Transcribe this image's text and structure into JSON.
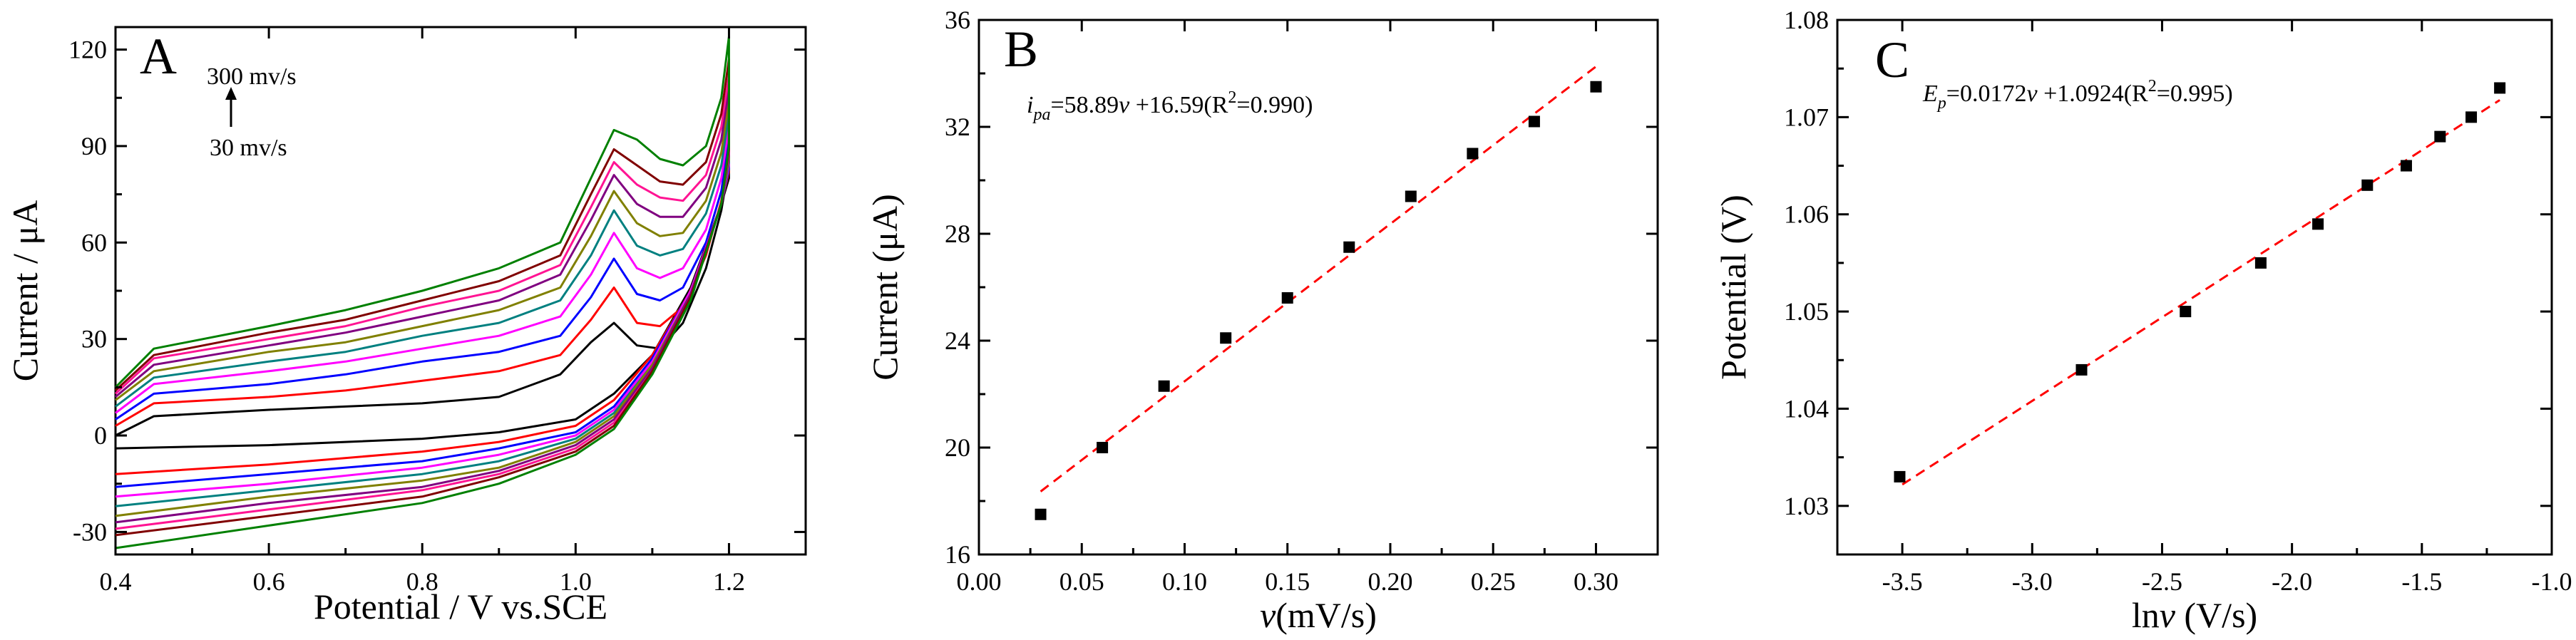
{
  "chart_data": [
    {
      "panel": "A",
      "type": "line",
      "xlabel": "Potential / V vs.SCE",
      "ylabel": "Current / μA",
      "xlim": [
        0.4,
        1.3
      ],
      "ylim": [
        -37,
        127
      ],
      "x_ticks": [
        0.4,
        0.6,
        0.8,
        1.0,
        1.2
      ],
      "x_tick_labels": [
        "0.4",
        "0.6",
        "0.8",
        "1.0",
        "1.2"
      ],
      "y_ticks": [
        -30,
        0,
        30,
        60,
        90,
        120
      ],
      "y_tick_labels": [
        "-30",
        "0",
        "30",
        "60",
        "90",
        "120"
      ],
      "annotation_top": "300 mv/s",
      "annotation_bottom": "30 mv/s",
      "scan_rates_mV_s": [
        30,
        60,
        90,
        120,
        150,
        180,
        210,
        240,
        270,
        300
      ],
      "series_colors": [
        "#000000",
        "#ff0000",
        "#0000ff",
        "#ff00ff",
        "#008080",
        "#808000",
        "#800080",
        "#ff1493",
        "#800000",
        "#008000"
      ],
      "series_points": [
        [
          [
            0.4,
            -4
          ],
          [
            0.6,
            -3
          ],
          [
            0.8,
            -1
          ],
          [
            0.9,
            1
          ],
          [
            1.0,
            5
          ],
          [
            1.05,
            13
          ],
          [
            1.1,
            25
          ],
          [
            1.15,
            46
          ],
          [
            1.19,
            72
          ],
          [
            1.2,
            80
          ],
          [
            1.2,
            84
          ],
          [
            1.19,
            70
          ],
          [
            1.17,
            52
          ],
          [
            1.14,
            35
          ],
          [
            1.11,
            27
          ],
          [
            1.08,
            28
          ],
          [
            1.05,
            35
          ],
          [
            1.02,
            29
          ],
          [
            0.98,
            19
          ],
          [
            0.9,
            12
          ],
          [
            0.8,
            10
          ],
          [
            0.7,
            9
          ],
          [
            0.6,
            8
          ],
          [
            0.45,
            6
          ],
          [
            0.4,
            0
          ]
        ],
        [
          [
            0.4,
            -12
          ],
          [
            0.6,
            -9
          ],
          [
            0.8,
            -5
          ],
          [
            0.9,
            -2
          ],
          [
            1.0,
            3
          ],
          [
            1.05,
            11
          ],
          [
            1.1,
            25
          ],
          [
            1.15,
            45
          ],
          [
            1.19,
            72
          ],
          [
            1.2,
            82
          ],
          [
            1.2,
            88
          ],
          [
            1.19,
            73
          ],
          [
            1.17,
            56
          ],
          [
            1.14,
            40
          ],
          [
            1.11,
            34
          ],
          [
            1.08,
            35
          ],
          [
            1.05,
            46
          ],
          [
            1.02,
            36
          ],
          [
            0.98,
            25
          ],
          [
            0.9,
            20
          ],
          [
            0.8,
            17
          ],
          [
            0.7,
            14
          ],
          [
            0.6,
            12
          ],
          [
            0.45,
            10
          ],
          [
            0.4,
            3
          ]
        ],
        [
          [
            0.4,
            -16
          ],
          [
            0.6,
            -12
          ],
          [
            0.8,
            -8
          ],
          [
            0.9,
            -4
          ],
          [
            1.0,
            1
          ],
          [
            1.05,
            9
          ],
          [
            1.1,
            24
          ],
          [
            1.15,
            45
          ],
          [
            1.19,
            72
          ],
          [
            1.2,
            83
          ],
          [
            1.2,
            92
          ],
          [
            1.19,
            76
          ],
          [
            1.17,
            60
          ],
          [
            1.14,
            46
          ],
          [
            1.11,
            42
          ],
          [
            1.08,
            44
          ],
          [
            1.05,
            55
          ],
          [
            1.02,
            43
          ],
          [
            0.98,
            31
          ],
          [
            0.9,
            26
          ],
          [
            0.8,
            23
          ],
          [
            0.7,
            19
          ],
          [
            0.6,
            16
          ],
          [
            0.45,
            13
          ],
          [
            0.4,
            5
          ]
        ],
        [
          [
            0.4,
            -19
          ],
          [
            0.6,
            -15
          ],
          [
            0.8,
            -10
          ],
          [
            0.9,
            -6
          ],
          [
            1.0,
            0
          ],
          [
            1.05,
            8
          ],
          [
            1.1,
            23
          ],
          [
            1.15,
            45
          ],
          [
            1.19,
            72
          ],
          [
            1.2,
            84
          ],
          [
            1.2,
            96
          ],
          [
            1.19,
            80
          ],
          [
            1.17,
            64
          ],
          [
            1.14,
            52
          ],
          [
            1.11,
            49
          ],
          [
            1.08,
            52
          ],
          [
            1.05,
            63
          ],
          [
            1.02,
            50
          ],
          [
            0.98,
            37
          ],
          [
            0.9,
            31
          ],
          [
            0.8,
            27
          ],
          [
            0.7,
            23
          ],
          [
            0.6,
            20
          ],
          [
            0.45,
            16
          ],
          [
            0.4,
            7
          ]
        ],
        [
          [
            0.4,
            -22
          ],
          [
            0.6,
            -17
          ],
          [
            0.8,
            -12
          ],
          [
            0.9,
            -8
          ],
          [
            1.0,
            -1
          ],
          [
            1.05,
            7
          ],
          [
            1.1,
            22
          ],
          [
            1.15,
            44
          ],
          [
            1.19,
            72
          ],
          [
            1.2,
            85
          ],
          [
            1.2,
            100
          ],
          [
            1.19,
            84
          ],
          [
            1.17,
            69
          ],
          [
            1.14,
            58
          ],
          [
            1.11,
            56
          ],
          [
            1.08,
            59
          ],
          [
            1.05,
            70
          ],
          [
            1.02,
            56
          ],
          [
            0.98,
            42
          ],
          [
            0.9,
            35
          ],
          [
            0.8,
            31
          ],
          [
            0.7,
            26
          ],
          [
            0.6,
            23
          ],
          [
            0.45,
            18
          ],
          [
            0.4,
            9
          ]
        ],
        [
          [
            0.4,
            -25
          ],
          [
            0.6,
            -19
          ],
          [
            0.8,
            -14
          ],
          [
            0.9,
            -10
          ],
          [
            1.0,
            -2
          ],
          [
            1.05,
            6
          ],
          [
            1.1,
            22
          ],
          [
            1.15,
            44
          ],
          [
            1.19,
            72
          ],
          [
            1.2,
            86
          ],
          [
            1.2,
            104
          ],
          [
            1.19,
            88
          ],
          [
            1.17,
            73
          ],
          [
            1.14,
            63
          ],
          [
            1.11,
            62
          ],
          [
            1.08,
            66
          ],
          [
            1.05,
            76
          ],
          [
            1.02,
            62
          ],
          [
            0.98,
            46
          ],
          [
            0.9,
            39
          ],
          [
            0.8,
            34
          ],
          [
            0.7,
            29
          ],
          [
            0.6,
            26
          ],
          [
            0.45,
            20
          ],
          [
            0.4,
            11
          ]
        ],
        [
          [
            0.4,
            -27
          ],
          [
            0.6,
            -21
          ],
          [
            0.8,
            -16
          ],
          [
            0.9,
            -11
          ],
          [
            1.0,
            -3
          ],
          [
            1.05,
            5
          ],
          [
            1.1,
            21
          ],
          [
            1.15,
            44
          ],
          [
            1.19,
            72
          ],
          [
            1.2,
            87
          ],
          [
            1.2,
            108
          ],
          [
            1.19,
            92
          ],
          [
            1.17,
            77
          ],
          [
            1.14,
            68
          ],
          [
            1.11,
            68
          ],
          [
            1.08,
            72
          ],
          [
            1.05,
            81
          ],
          [
            1.02,
            67
          ],
          [
            0.98,
            50
          ],
          [
            0.9,
            42
          ],
          [
            0.8,
            37
          ],
          [
            0.7,
            32
          ],
          [
            0.6,
            28
          ],
          [
            0.45,
            22
          ],
          [
            0.4,
            12
          ]
        ],
        [
          [
            0.4,
            -29
          ],
          [
            0.6,
            -23
          ],
          [
            0.8,
            -17
          ],
          [
            0.9,
            -12
          ],
          [
            1.0,
            -4
          ],
          [
            1.05,
            4
          ],
          [
            1.1,
            20
          ],
          [
            1.15,
            43
          ],
          [
            1.19,
            72
          ],
          [
            1.2,
            88
          ],
          [
            1.2,
            112
          ],
          [
            1.19,
            96
          ],
          [
            1.17,
            81
          ],
          [
            1.14,
            73
          ],
          [
            1.11,
            74
          ],
          [
            1.08,
            78
          ],
          [
            1.05,
            85
          ],
          [
            1.02,
            71
          ],
          [
            0.98,
            53
          ],
          [
            0.9,
            45
          ],
          [
            0.8,
            40
          ],
          [
            0.7,
            34
          ],
          [
            0.6,
            30
          ],
          [
            0.45,
            24
          ],
          [
            0.4,
            13
          ]
        ],
        [
          [
            0.4,
            -31
          ],
          [
            0.6,
            -25
          ],
          [
            0.8,
            -19
          ],
          [
            0.9,
            -13
          ],
          [
            1.0,
            -5
          ],
          [
            1.05,
            3
          ],
          [
            1.1,
            20
          ],
          [
            1.15,
            43
          ],
          [
            1.19,
            72
          ],
          [
            1.2,
            89
          ],
          [
            1.2,
            117
          ],
          [
            1.19,
            100
          ],
          [
            1.17,
            85
          ],
          [
            1.14,
            78
          ],
          [
            1.11,
            79
          ],
          [
            1.08,
            84
          ],
          [
            1.05,
            89
          ],
          [
            1.02,
            75
          ],
          [
            0.98,
            56
          ],
          [
            0.9,
            48
          ],
          [
            0.8,
            42
          ],
          [
            0.7,
            36
          ],
          [
            0.6,
            32
          ],
          [
            0.45,
            25
          ],
          [
            0.4,
            14
          ]
        ],
        [
          [
            0.4,
            -35
          ],
          [
            0.6,
            -28
          ],
          [
            0.8,
            -21
          ],
          [
            0.9,
            -15
          ],
          [
            1.0,
            -6
          ],
          [
            1.05,
            2
          ],
          [
            1.1,
            19
          ],
          [
            1.15,
            42
          ],
          [
            1.19,
            72
          ],
          [
            1.2,
            90
          ],
          [
            1.2,
            124
          ],
          [
            1.19,
            105
          ],
          [
            1.17,
            90
          ],
          [
            1.14,
            84
          ],
          [
            1.11,
            86
          ],
          [
            1.08,
            92
          ],
          [
            1.05,
            95
          ],
          [
            1.02,
            80
          ],
          [
            0.98,
            60
          ],
          [
            0.9,
            52
          ],
          [
            0.8,
            45
          ],
          [
            0.7,
            39
          ],
          [
            0.6,
            34
          ],
          [
            0.45,
            27
          ],
          [
            0.4,
            15
          ]
        ]
      ]
    },
    {
      "panel": "B",
      "type": "scatter",
      "xlabel": "v(mV/s)",
      "xlabel_italic": "v",
      "xlabel_rest": "(mV/s)",
      "ylabel": "Current (μA)",
      "xlim": [
        0.0,
        0.33
      ],
      "ylim": [
        16,
        36
      ],
      "x_ticks": [
        0.0,
        0.05,
        0.1,
        0.15,
        0.2,
        0.25,
        0.3
      ],
      "x_tick_labels": [
        "0.00",
        "0.05",
        "0.10",
        "0.15",
        "0.20",
        "0.25",
        "0.30"
      ],
      "y_ticks": [
        16,
        20,
        24,
        28,
        32,
        36
      ],
      "y_tick_labels": [
        "16",
        "20",
        "24",
        "28",
        "32",
        "36"
      ],
      "x": [
        0.03,
        0.06,
        0.09,
        0.12,
        0.15,
        0.18,
        0.21,
        0.24,
        0.27,
        0.3
      ],
      "y": [
        17.5,
        20.0,
        22.3,
        24.1,
        25.6,
        27.5,
        29.4,
        31.0,
        32.2,
        33.5
      ],
      "fit": {
        "slope": 58.89,
        "intercept": 16.59,
        "x_range": [
          0.03,
          0.3
        ]
      },
      "equation": {
        "lhs": "i",
        "lhs_sub": "pa",
        "rhs_a": "=58.89",
        "var": "v",
        "rhs_b": " +16.59(R",
        "sup": "2",
        "rhs_c": "=0.990)"
      }
    },
    {
      "panel": "C",
      "type": "scatter",
      "xlabel": "lnv (V/s)",
      "xlabel_prefix": "ln",
      "xlabel_italic": "v",
      "xlabel_rest": " (V/s)",
      "ylabel": "Potential (V)",
      "xlim": [
        -3.75,
        -1.0
      ],
      "ylim": [
        1.025,
        1.08
      ],
      "x_ticks": [
        -3.5,
        -3.0,
        -2.5,
        -2.0,
        -1.5,
        -1.0
      ],
      "x_tick_labels": [
        "-3.5",
        "-3.0",
        "-2.5",
        "-2.0",
        "-1.5",
        "-1.0"
      ],
      "y_ticks": [
        1.03,
        1.04,
        1.05,
        1.06,
        1.07,
        1.08
      ],
      "y_tick_labels": [
        "1.03",
        "1.04",
        "1.05",
        "1.06",
        "1.07",
        "1.08"
      ],
      "x": [
        -3.51,
        -2.81,
        -2.41,
        -2.12,
        -1.9,
        -1.71,
        -1.56,
        -1.43,
        -1.31,
        -1.2
      ],
      "y": [
        1.033,
        1.044,
        1.05,
        1.055,
        1.059,
        1.063,
        1.065,
        1.068,
        1.07,
        1.073
      ],
      "fit": {
        "slope": 0.0172,
        "intercept": 1.0924,
        "x_range": [
          -3.5,
          -1.2
        ]
      },
      "equation": {
        "lhs": "E",
        "lhs_sub": "p",
        "rhs_a": "=0.0172",
        "var": "v",
        "rhs_b": " +1.0924(R",
        "sup": "2",
        "rhs_c": "=0.995)"
      }
    }
  ]
}
